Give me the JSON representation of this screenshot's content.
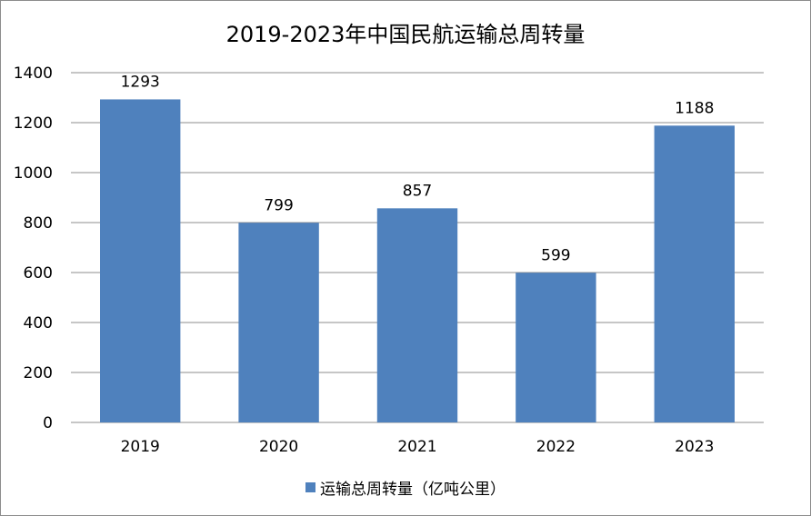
{
  "chart_data": {
    "type": "bar",
    "title": "2019-2023年中国民航运输总周转量",
    "categories": [
      "2019",
      "2020",
      "2021",
      "2022",
      "2023"
    ],
    "series": [
      {
        "name": "运输总周转量（亿吨公里）",
        "values": [
          1293,
          799,
          857,
          599,
          1188
        ],
        "color": "#4f81bd"
      }
    ],
    "data_labels": [
      "1293",
      "799",
      "857",
      "599",
      "1188"
    ],
    "yticks": [
      "0",
      "200",
      "400",
      "600",
      "800",
      "1000",
      "1200",
      "1400"
    ],
    "ylim": [
      0,
      1400
    ],
    "grid": true,
    "legend_position": "bottom",
    "xlabel": "",
    "ylabel": ""
  }
}
